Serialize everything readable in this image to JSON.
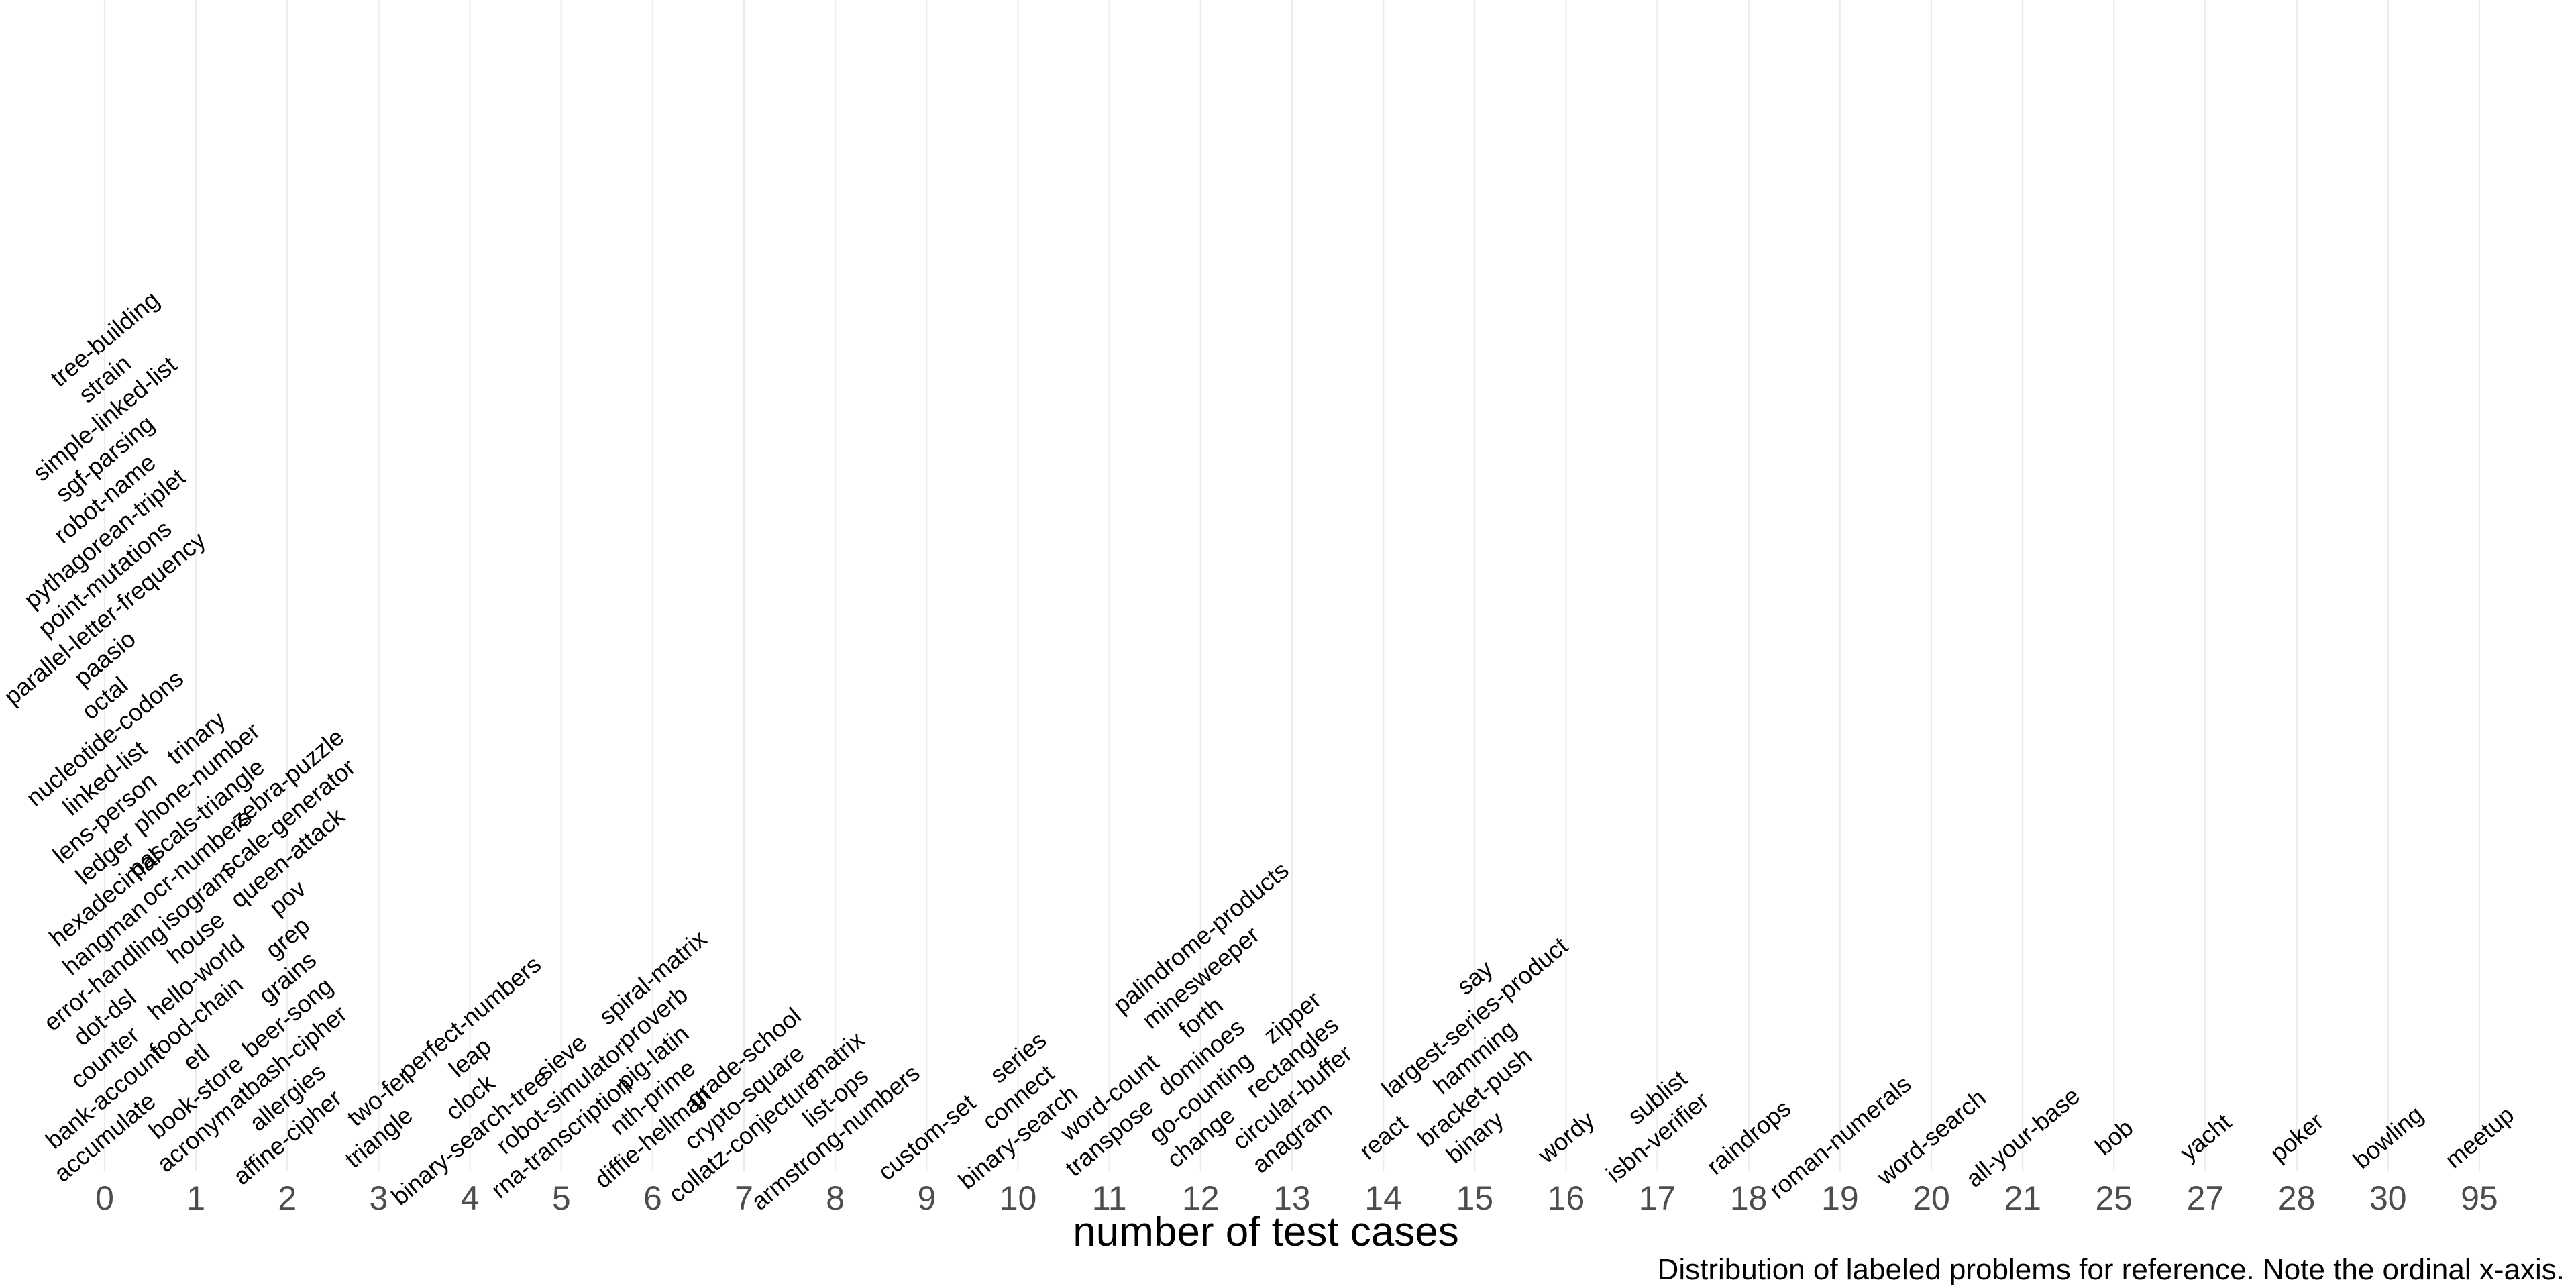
{
  "chart_data": {
    "type": "scatter",
    "title": "",
    "xlabel": "number of test cases",
    "ylabel": "",
    "caption": "Distribution of labeled problems for reference. Note the ordinal x-axis.",
    "x_axis_scale": "ordinal",
    "grid": "vertical major gridlines",
    "categories": [
      "0",
      "1",
      "2",
      "3",
      "4",
      "5",
      "6",
      "7",
      "8",
      "9",
      "10",
      "11",
      "12",
      "13",
      "14",
      "15",
      "16",
      "17",
      "18",
      "19",
      "20",
      "21",
      "25",
      "27",
      "28",
      "30",
      "95"
    ],
    "columns": [
      {
        "x": "0",
        "labels": [
          "accumulate",
          "bank-account",
          "counter",
          "dot-dsl",
          "error-handling",
          "hangman",
          "hexadecimal",
          "ledger",
          "lens-person",
          "linked-list",
          "nucleotide-codons",
          "octal",
          "paasio",
          "parallel-letter-frequency",
          "point-mutations",
          "pythagorean-triplet",
          "robot-name",
          "sgf-parsing",
          "simple-linked-list",
          "strain",
          "tree-building"
        ]
      },
      {
        "x": "1",
        "labels": [
          "acronym",
          "book-store",
          "etl",
          "food-chain",
          "hello-world",
          "house",
          "isogram",
          "ocr-numbers",
          "pascals-triangle",
          "phone-number",
          "trinary"
        ]
      },
      {
        "x": "2",
        "labels": [
          "affine-cipher",
          "allergies",
          "atbash-cipher",
          "beer-song",
          "grains",
          "grep",
          "pov",
          "queen-attack",
          "scale-generator",
          "zebra-puzzle"
        ]
      },
      {
        "x": "3",
        "labels": [
          "triangle",
          "two-fer"
        ]
      },
      {
        "x": "4",
        "labels": [
          "binary-search-tree",
          "clock",
          "leap",
          "perfect-numbers"
        ]
      },
      {
        "x": "5",
        "labels": [
          "rna-transcription",
          "robot-simulator",
          "sieve"
        ]
      },
      {
        "x": "6",
        "labels": [
          "diffie-hellman",
          "nth-prime",
          "pig-latin",
          "proverb",
          "spiral-matrix"
        ]
      },
      {
        "x": "7",
        "labels": [
          "collatz-conjecture",
          "crypto-square",
          "grade-school"
        ]
      },
      {
        "x": "8",
        "labels": [
          "armstrong-numbers",
          "list-ops",
          "matrix"
        ]
      },
      {
        "x": "9",
        "labels": [
          "custom-set"
        ]
      },
      {
        "x": "10",
        "labels": [
          "binary-search",
          "connect",
          "series"
        ]
      },
      {
        "x": "11",
        "labels": [
          "transpose",
          "word-count"
        ]
      },
      {
        "x": "12",
        "labels": [
          "change",
          "go-counting",
          "dominoes",
          "forth",
          "minesweeper",
          "palindrome-products"
        ]
      },
      {
        "x": "13",
        "labels": [
          "anagram",
          "circular-buffer",
          "rectangles",
          "zipper"
        ]
      },
      {
        "x": "14",
        "labels": [
          "react"
        ]
      },
      {
        "x": "15",
        "labels": [
          "binary",
          "bracket-push",
          "hamming",
          "largest-series-product",
          "say"
        ]
      },
      {
        "x": "16",
        "labels": [
          "wordy"
        ]
      },
      {
        "x": "17",
        "labels": [
          "isbn-verifier",
          "sublist"
        ]
      },
      {
        "x": "18",
        "labels": [
          "raindrops"
        ]
      },
      {
        "x": "19",
        "labels": [
          "roman-numerals"
        ]
      },
      {
        "x": "20",
        "labels": [
          "word-search"
        ]
      },
      {
        "x": "21",
        "labels": [
          "all-your-base"
        ]
      },
      {
        "x": "25",
        "labels": [
          "bob"
        ]
      },
      {
        "x": "27",
        "labels": [
          "yacht"
        ]
      },
      {
        "x": "28",
        "labels": [
          "poker"
        ]
      },
      {
        "x": "30",
        "labels": [
          "bowling"
        ]
      },
      {
        "x": "95",
        "labels": [
          "meetup"
        ]
      }
    ]
  }
}
